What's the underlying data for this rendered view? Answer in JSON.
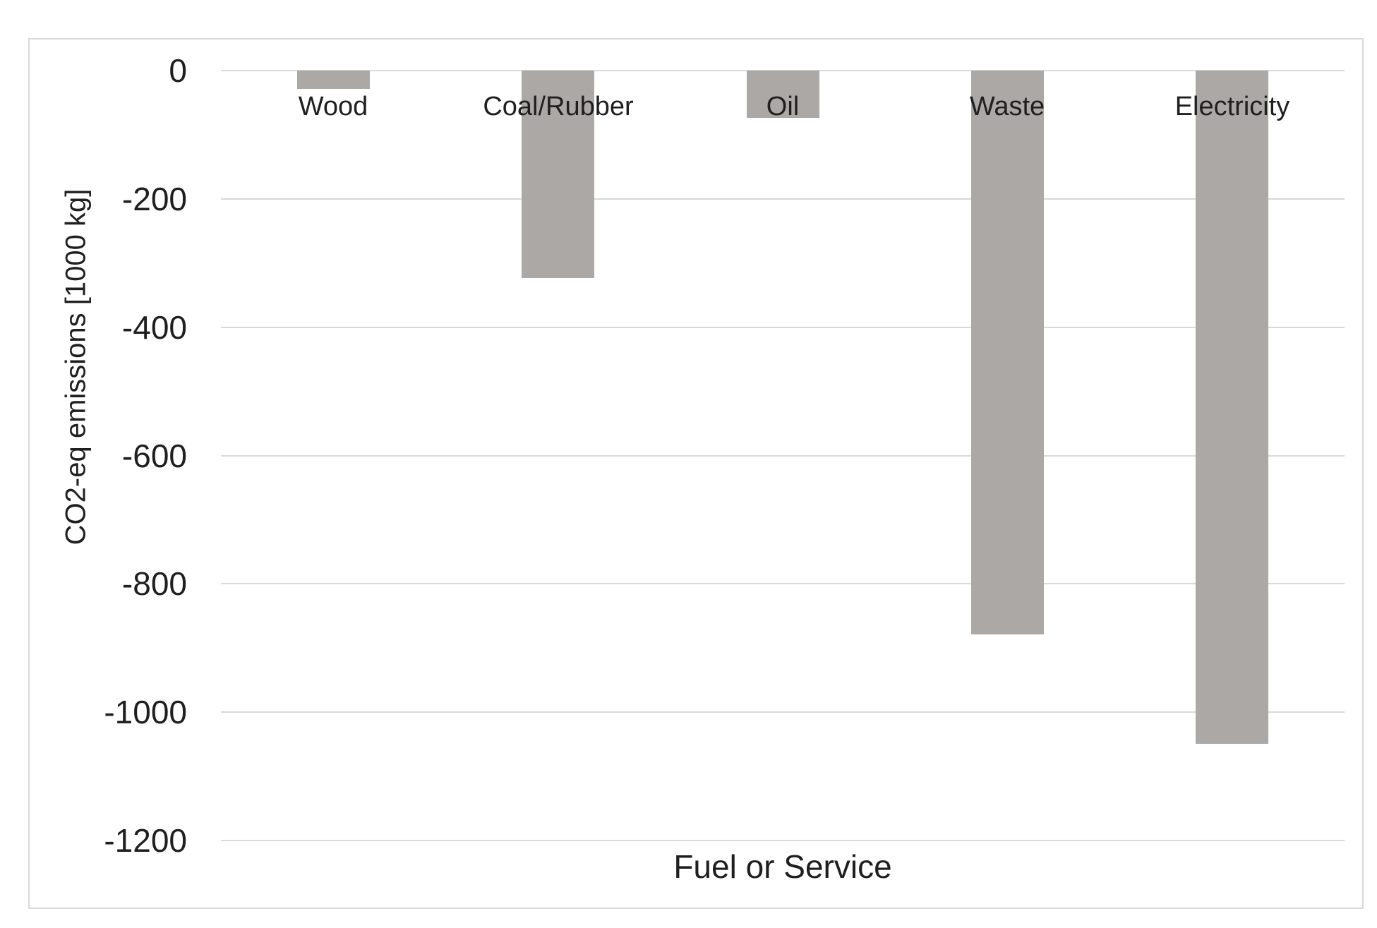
{
  "page": {
    "background": "#ffffff"
  },
  "chart_data": {
    "type": "bar",
    "title": "",
    "xlabel": "Fuel or Service",
    "ylabel": "CO2-eq emissions [1000 kg]",
    "categories": [
      "Wood",
      "Coal/Rubber",
      "Oil",
      "Waste",
      "Electricity"
    ],
    "values": [
      -30,
      -325,
      -75,
      -880,
      -1050
    ],
    "series": [
      {
        "name": "CO2-eq emissions",
        "values": [
          -30,
          -325,
          -75,
          -880,
          -1050
        ]
      }
    ],
    "ylim": [
      -1200,
      0
    ],
    "yticks": [
      0,
      -200,
      -400,
      -600,
      -800,
      -1000,
      -1200
    ],
    "ytick_labels": [
      "0",
      "-200",
      "-400",
      "-600",
      "-800",
      "-1000",
      "-1200"
    ],
    "grid": true,
    "legend": false,
    "bar_color": "#aca8a5",
    "gridline_color": "#d9d9d9",
    "frame_color": "#d9d9d9",
    "text_color": "#1f1f1f"
  }
}
